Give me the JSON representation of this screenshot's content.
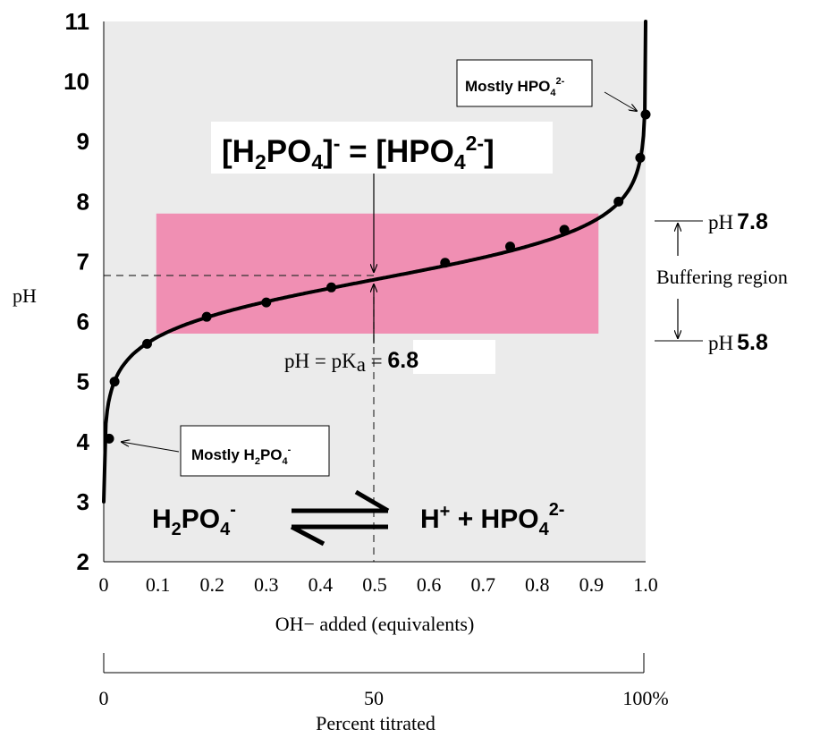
{
  "chart_data": {
    "type": "line",
    "x": [
      0.01,
      0.02,
      0.08,
      0.19,
      0.3,
      0.42,
      0.63,
      0.75,
      0.85,
      0.95,
      0.99,
      1.0
    ],
    "y": [
      4.05,
      5.0,
      5.63,
      6.08,
      6.32,
      6.57,
      6.98,
      7.25,
      7.53,
      8.0,
      8.73,
      9.45
    ],
    "xlabel": "OH− added (equivalents)",
    "ylabel": "pH",
    "xlim": [
      0,
      1.0
    ],
    "ylim": [
      2,
      11
    ],
    "x_ticks": [
      "0",
      "0.1",
      "0.2",
      "0.3",
      "0.4",
      "0.5",
      "0.6",
      "0.7",
      "0.8",
      "0.9",
      "1.0"
    ],
    "y_ticks": [
      "2",
      "3",
      "4",
      "5",
      "6",
      "7",
      "8",
      "9",
      "10",
      "11"
    ],
    "buffer_region": {
      "ph_low": 5.8,
      "ph_high": 7.8,
      "color": "#f08fb3"
    },
    "pka": 6.8,
    "midpoint": {
      "x": 0.5,
      "y": 6.7
    },
    "grid": false,
    "background": "#ebebeb"
  },
  "annotations": {
    "equality_label": "[H2PO4]- = [HPO42-]",
    "pka_prefix": "pH = pK",
    "pka_sub": "a",
    "pka_eq": " = ",
    "pka_value": "6.8",
    "mostly_hpo4": "Mostly HPO42-",
    "mostly_h2po4": "Mostly H2PO4-",
    "equation_left": "H2PO4-",
    "equation_right": "H+ + HPO42-",
    "ph_high_prefix": "pH",
    "ph_high_value": "7.8",
    "ph_low_prefix": "pH",
    "ph_low_value": "5.8",
    "buffering_region": "Buffering region"
  },
  "percent_axis": {
    "ticks": [
      "0",
      "50",
      "100%"
    ],
    "label": "Percent titrated"
  }
}
